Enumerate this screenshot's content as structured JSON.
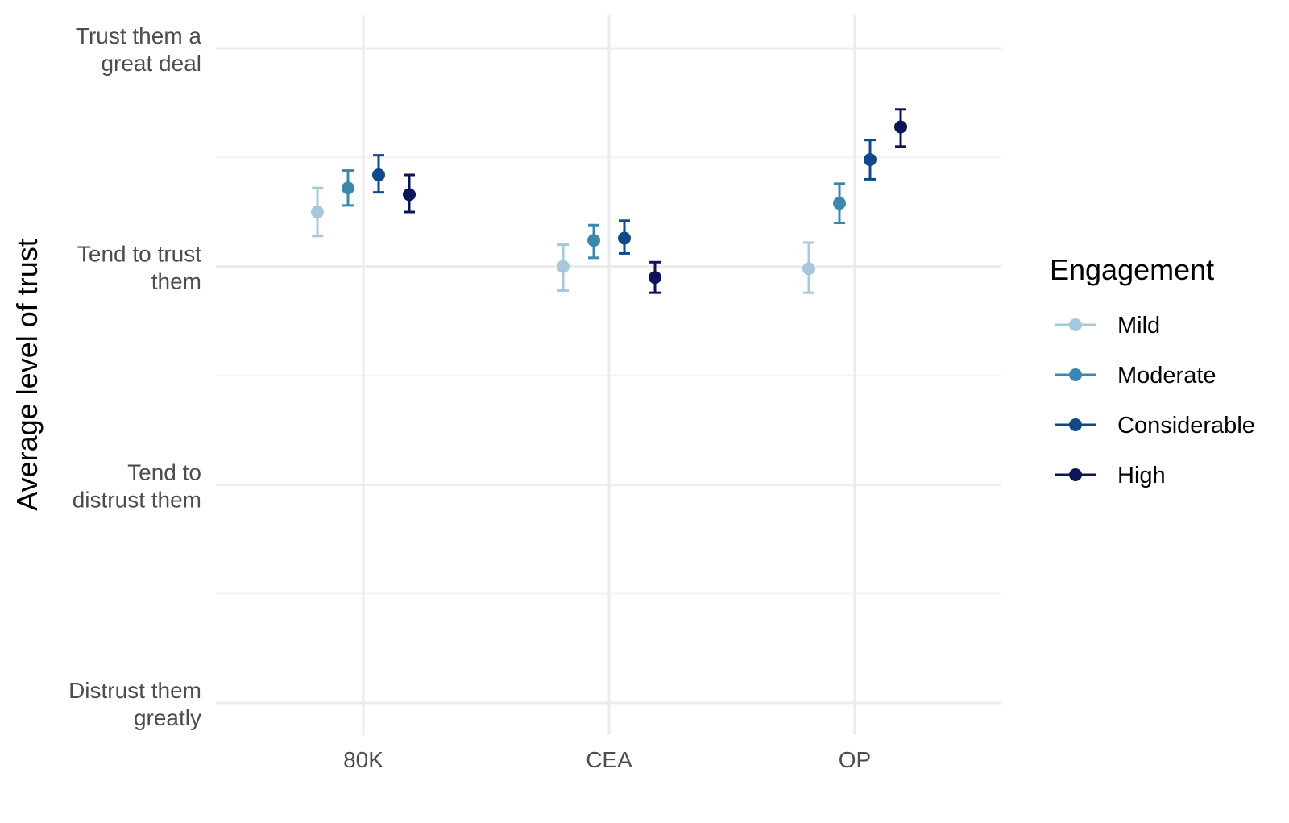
{
  "chart_data": {
    "type": "scatter",
    "title": "",
    "xlabel": "",
    "ylabel": "Average level of trust",
    "categories": [
      "80K",
      "CEA",
      "OP"
    ],
    "y_ticks": [
      {
        "value": 1,
        "label": [
          "Distrust them",
          "greatly"
        ]
      },
      {
        "value": 2,
        "label": [
          "Tend to",
          "distrust them"
        ]
      },
      {
        "value": 3,
        "label": [
          "Tend to trust",
          "them"
        ]
      },
      {
        "value": 4,
        "label": [
          "Trust them a",
          "great deal"
        ]
      }
    ],
    "ylim": [
      1,
      4
    ],
    "grid": true,
    "legend": {
      "title": "Engagement",
      "position": "right"
    },
    "series": [
      {
        "name": "Mild",
        "color": "#a6c8da",
        "values": [
          3.25,
          3.0,
          2.99
        ],
        "lower": [
          3.14,
          2.89,
          2.88
        ],
        "upper": [
          3.36,
          3.1,
          3.11
        ]
      },
      {
        "name": "Moderate",
        "color": "#3a87b0",
        "values": [
          3.36,
          3.12,
          3.29
        ],
        "lower": [
          3.28,
          3.04,
          3.2
        ],
        "upper": [
          3.44,
          3.19,
          3.38
        ]
      },
      {
        "name": "Considerable",
        "color": "#0d4a87",
        "values": [
          3.42,
          3.13,
          3.49
        ],
        "lower": [
          3.34,
          3.06,
          3.4
        ],
        "upper": [
          3.51,
          3.21,
          3.58
        ]
      },
      {
        "name": "High",
        "color": "#0b1557",
        "values": [
          3.33,
          2.95,
          3.64
        ],
        "lower": [
          3.25,
          2.88,
          3.55
        ],
        "upper": [
          3.42,
          3.02,
          3.72
        ]
      }
    ]
  }
}
